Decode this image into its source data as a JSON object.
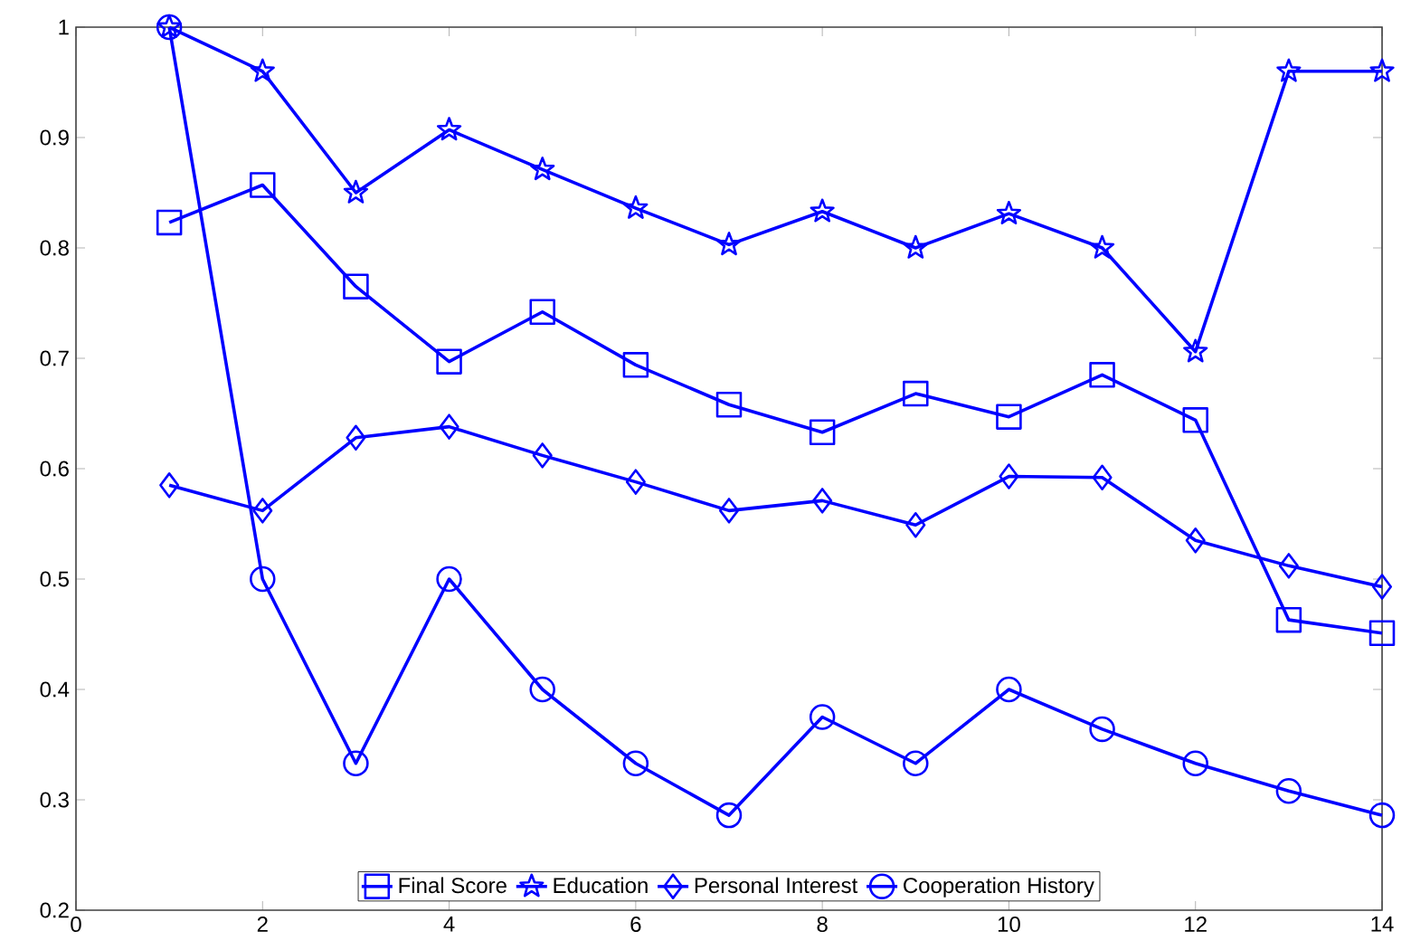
{
  "chart_data": {
    "type": "line",
    "x": [
      1,
      2,
      3,
      4,
      5,
      6,
      7,
      8,
      9,
      10,
      11,
      12,
      13,
      14
    ],
    "xlim": [
      0,
      14
    ],
    "xticks": [
      0,
      2,
      4,
      6,
      8,
      10,
      12,
      14
    ],
    "ylim": [
      0.2,
      1
    ],
    "yticks": [
      0.2,
      0.3,
      0.4,
      0.5,
      0.6,
      0.7,
      0.8,
      0.9,
      1
    ],
    "legend": "bottom",
    "grid": false,
    "line_style": "solid",
    "series": [
      {
        "name": "Final Score",
        "color": "#0000ff",
        "marker": "square",
        "values": [
          0.823,
          0.857,
          0.765,
          0.697,
          0.742,
          0.694,
          0.658,
          0.633,
          0.668,
          0.647,
          0.685,
          0.644,
          0.463,
          0.451
        ]
      },
      {
        "name": "Education",
        "color": "#0000ff",
        "marker": "star",
        "values": [
          1,
          0.96,
          0.85,
          0.907,
          0.871,
          0.836,
          0.803,
          0.833,
          0.8,
          0.831,
          0.8,
          0.706,
          0.96,
          0.96
        ]
      },
      {
        "name": "Personal Interest",
        "color": "#0000ff",
        "marker": "diamond",
        "values": [
          0.585,
          0.562,
          0.628,
          0.638,
          0.612,
          0.588,
          0.562,
          0.571,
          0.549,
          0.593,
          0.592,
          0.535,
          0.512,
          0.493
        ]
      },
      {
        "name": "Cooperation History",
        "color": "#0000ff",
        "marker": "circle",
        "values": [
          1,
          0.5,
          0.333,
          0.5,
          0.4,
          0.333,
          0.286,
          0.375,
          0.333,
          0.4,
          0.364,
          0.333,
          0.308,
          0.286
        ]
      }
    ]
  }
}
